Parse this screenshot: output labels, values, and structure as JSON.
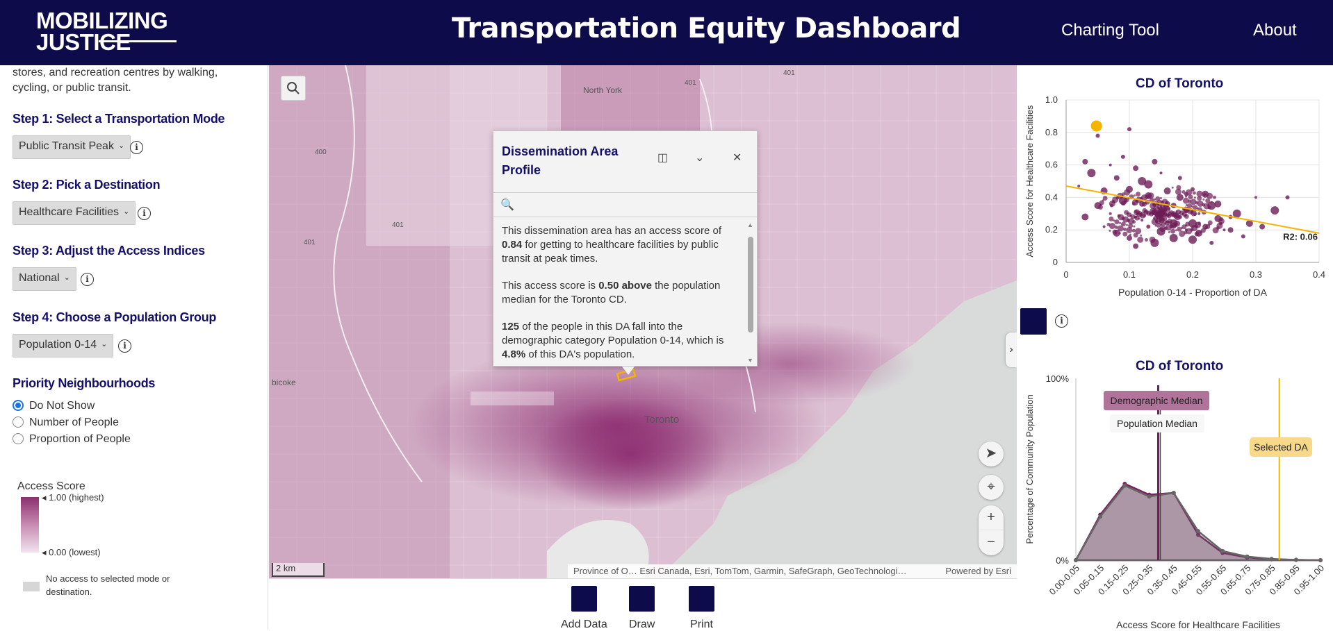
{
  "header": {
    "logo_line1": "MOBILIZING",
    "logo_line2": "JUSTICE",
    "title": "Transportation Equity Dashboard",
    "nav": [
      "Charting Tool",
      "About"
    ]
  },
  "left_panel": {
    "intro": "stores, and recreation centres by walking, cycling, or public transit.",
    "step1": {
      "title": "Step 1: Select a Transportation Mode",
      "value": "Public Transit Peak"
    },
    "step2": {
      "title": "Step 2: Pick a Destination",
      "value": "Healthcare Facilities"
    },
    "step3": {
      "title": "Step 3: Adjust the Access Indices",
      "value": "National"
    },
    "step4": {
      "title": "Step 4: Choose a Population Group",
      "value": "Population 0-14"
    },
    "priority": {
      "title": "Priority Neighbourhoods",
      "options": [
        "Do Not Show",
        "Number of People",
        "Proportion of People"
      ],
      "selected": "Do Not Show"
    },
    "legend": {
      "title": "Access Score",
      "high": "1.00 (highest)",
      "low": "0.00 (lowest)",
      "no_access": "No access to selected mode or destination."
    }
  },
  "map": {
    "labels": {
      "north_york": "North York",
      "toronto": "Toronto",
      "etobicoke": "bicoke",
      "r400": "400",
      "r401a": "401",
      "r401b": "401",
      "r401c": "401",
      "r401d": "401"
    },
    "scale": "2 km",
    "attribution": "Province of O… Esri Canada, Esri, TomTom, Garmin, SafeGraph, GeoTechnologi…",
    "powered": "Powered by Esri",
    "colors": {
      "dark": "#7a1f60",
      "mid": "#c98db6",
      "light": "#eedbe7",
      "water": "#d9dada"
    }
  },
  "popup": {
    "title": "Dissemination Area Profile",
    "p1_pre": "This dissemination area has an access score of ",
    "p1_bold": "0.84",
    "p1_post": " for getting to healthcare facilities by public transit at peak times.",
    "p2_pre": "This access score is ",
    "p2_bold": "0.50 above",
    "p2_post": " the population median for the Toronto CD.",
    "p3_bold1": "125",
    "p3_mid": " of the people in this DA fall into the demographic category Population 0-14, which is ",
    "p3_bold2": "4.8%",
    "p3_post": " of this DA's population."
  },
  "toolbar": {
    "add_data": "Add Data",
    "draw": "Draw",
    "print": "Print"
  },
  "scatter": {
    "title": "CD of Toronto",
    "r2_label": "R2: 0.06"
  },
  "histogram": {
    "title": "CD of Toronto",
    "demographic_median_label": "Demographic Median",
    "population_median_label": "Population Median",
    "selected_da_label": "Selected DA"
  },
  "chart_data": [
    {
      "type": "scatter",
      "title": "CD of Toronto",
      "xlabel": "Population 0-14 - Proportion of DA",
      "ylabel": "Access Score for Healthcare Facilities",
      "xlim": [
        0,
        0.4
      ],
      "ylim": [
        0,
        1.0
      ],
      "xticks": [
        "0",
        "0.1",
        "0.2",
        "0.3",
        "0.4"
      ],
      "yticks": [
        "0",
        "0.2",
        "0.4",
        "0.6",
        "0.8",
        "1.0"
      ],
      "grid": true,
      "highlighted_point": {
        "x": 0.048,
        "y": 0.84
      },
      "trendline": {
        "x": [
          0,
          0.4
        ],
        "y": [
          0.47,
          0.18
        ]
      },
      "r2": 0.06,
      "points": [
        [
          0.02,
          0.47
        ],
        [
          0.03,
          0.62
        ],
        [
          0.04,
          0.55
        ],
        [
          0.05,
          0.78
        ],
        [
          0.06,
          0.44
        ],
        [
          0.07,
          0.3
        ],
        [
          0.08,
          0.52
        ],
        [
          0.09,
          0.38
        ],
        [
          0.1,
          0.82
        ],
        [
          0.1,
          0.45
        ],
        [
          0.11,
          0.28
        ],
        [
          0.12,
          0.36
        ],
        [
          0.12,
          0.5
        ],
        [
          0.13,
          0.22
        ],
        [
          0.13,
          0.41
        ],
        [
          0.14,
          0.33
        ],
        [
          0.14,
          0.62
        ],
        [
          0.15,
          0.19
        ],
        [
          0.15,
          0.3
        ],
        [
          0.16,
          0.44
        ],
        [
          0.16,
          0.25
        ],
        [
          0.17,
          0.35
        ],
        [
          0.17,
          0.15
        ],
        [
          0.18,
          0.28
        ],
        [
          0.18,
          0.4
        ],
        [
          0.19,
          0.2
        ],
        [
          0.19,
          0.32
        ],
        [
          0.2,
          0.24
        ],
        [
          0.2,
          0.45
        ],
        [
          0.21,
          0.18
        ],
        [
          0.21,
          0.3
        ],
        [
          0.22,
          0.22
        ],
        [
          0.23,
          0.35
        ],
        [
          0.23,
          0.12
        ],
        [
          0.24,
          0.27
        ],
        [
          0.25,
          0.2
        ],
        [
          0.26,
          0.2
        ],
        [
          0.27,
          0.3
        ],
        [
          0.28,
          0.16
        ],
        [
          0.29,
          0.24
        ],
        [
          0.3,
          0.4
        ],
        [
          0.31,
          0.22
        ],
        [
          0.33,
          0.32
        ],
        [
          0.35,
          0.4
        ],
        [
          0.08,
          0.18
        ],
        [
          0.06,
          0.22
        ],
        [
          0.11,
          0.1
        ],
        [
          0.14,
          0.12
        ],
        [
          0.09,
          0.65
        ],
        [
          0.05,
          0.35
        ],
        [
          0.12,
          0.26
        ],
        [
          0.16,
          0.36
        ],
        [
          0.13,
          0.48
        ],
        [
          0.18,
          0.52
        ],
        [
          0.22,
          0.42
        ],
        [
          0.07,
          0.6
        ],
        [
          0.1,
          0.15
        ],
        [
          0.17,
          0.24
        ],
        [
          0.19,
          0.42
        ],
        [
          0.24,
          0.36
        ],
        [
          0.15,
          0.55
        ],
        [
          0.11,
          0.58
        ],
        [
          0.2,
          0.14
        ],
        [
          0.26,
          0.28
        ],
        [
          0.03,
          0.28
        ]
      ]
    },
    {
      "type": "area",
      "title": "CD of Toronto",
      "xlabel": "Access Score for Healthcare Facilities",
      "ylabel": "Percentage of Community Population",
      "yticks": [
        "0%",
        "100%"
      ],
      "categories": [
        "0.00-0.05",
        "0.05-0.15",
        "0.15-0.25",
        "0.25-0.35",
        "0.35-0.45",
        "0.45-0.55",
        "0.55-0.65",
        "0.65-0.75",
        "0.75-0.85",
        "0.85-0.95",
        "0.95-1.00"
      ],
      "series": [
        {
          "name": "Demographic",
          "values": [
            0,
            25,
            42,
            36,
            37,
            14,
            4,
            1.5,
            0.5,
            0.2,
            0
          ],
          "color": "#7a1f60"
        },
        {
          "name": "Population",
          "values": [
            0,
            24,
            41,
            35,
            37,
            16,
            5,
            2,
            0.7,
            0.2,
            0
          ],
          "color": "#666666"
        }
      ],
      "markers": {
        "demographic_median": 0.34,
        "population_median": 0.34,
        "selected_da": 0.84
      }
    }
  ]
}
